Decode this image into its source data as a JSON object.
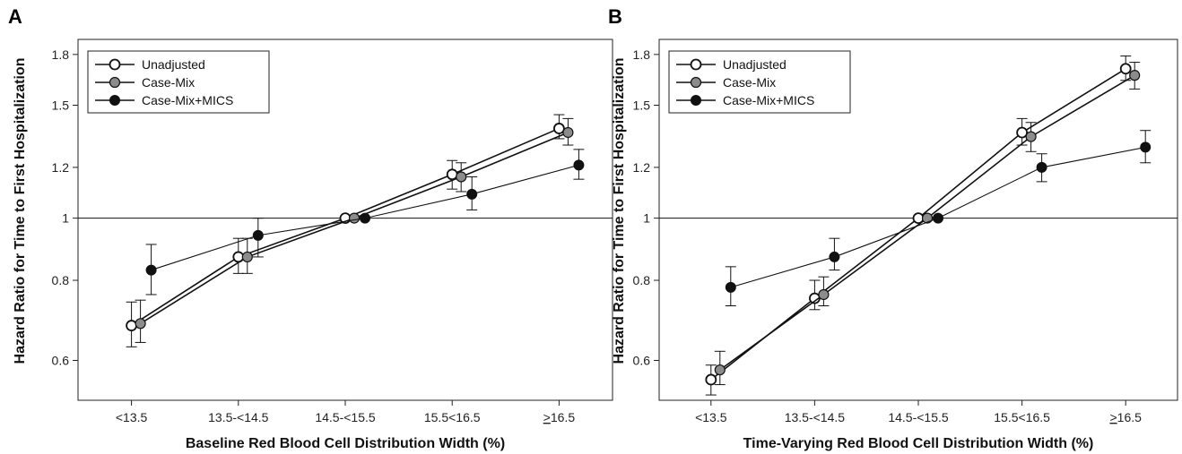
{
  "chart_data": [
    {
      "type": "line",
      "panel_label": "A",
      "xlabel": "Baseline Red Blood Cell Distribution Width (%)",
      "ylabel": "Hazard Ratio for Time to First Hospitalization",
      "categories": [
        "<13.5",
        "13.5-<14.5",
        "14.5-<15.5",
        "15.5<16.5",
        "≥16.5"
      ],
      "y_scale": "log",
      "ylim": [
        0.52,
        1.9
      ],
      "yticks": [
        0.6,
        0.8,
        1,
        1.2,
        1.5,
        1.8
      ],
      "reference_line": 1,
      "legend_position": "top-left",
      "series": [
        {
          "name": "Unadjusted",
          "color": "#ffffff",
          "values": [
            0.68,
            0.87,
            1.0,
            1.17,
            1.38
          ],
          "ci_low": [
            0.63,
            0.82,
            1.0,
            1.11,
            1.33
          ],
          "ci_high": [
            0.74,
            0.93,
            1.0,
            1.23,
            1.45
          ]
        },
        {
          "name": "Case-Mix",
          "color": "#8c8c8c",
          "values": [
            0.685,
            0.87,
            1.0,
            1.16,
            1.36
          ],
          "ci_low": [
            0.64,
            0.82,
            1.0,
            1.1,
            1.3
          ],
          "ci_high": [
            0.745,
            0.93,
            1.0,
            1.22,
            1.43
          ]
        },
        {
          "name": "Case-Mix+MICS",
          "color": "#111111",
          "values": [
            0.83,
            0.94,
            1.0,
            1.09,
            1.21
          ],
          "ci_low": [
            0.76,
            0.87,
            1.0,
            1.03,
            1.15
          ],
          "ci_high": [
            0.91,
            1.0,
            1.0,
            1.16,
            1.28
          ]
        }
      ]
    },
    {
      "type": "line",
      "panel_label": "B",
      "xlabel": "Time-Varying Red Blood Cell Distribution Width (%)",
      "ylabel": "Hazard Ratio for Time to First Hospitalization",
      "categories": [
        "<13.5",
        "13.5-<14.5",
        "14.5-<15.5",
        "15.5<16.5",
        "≥16.5"
      ],
      "y_scale": "log",
      "ylim": [
        0.52,
        1.9
      ],
      "yticks": [
        0.6,
        0.8,
        1,
        1.2,
        1.5,
        1.8
      ],
      "reference_line": 1,
      "legend_position": "top-left",
      "series": [
        {
          "name": "Unadjusted",
          "color": "#ffffff",
          "values": [
            0.56,
            0.75,
            1.0,
            1.36,
            1.71
          ],
          "ci_low": [
            0.53,
            0.72,
            1.0,
            1.3,
            1.64
          ],
          "ci_high": [
            0.59,
            0.8,
            1.0,
            1.43,
            1.79
          ]
        },
        {
          "name": "Case-Mix",
          "color": "#8c8c8c",
          "values": [
            0.58,
            0.76,
            1.0,
            1.34,
            1.67
          ],
          "ci_low": [
            0.55,
            0.73,
            1.0,
            1.27,
            1.59
          ],
          "ci_high": [
            0.62,
            0.81,
            1.0,
            1.41,
            1.75
          ]
        },
        {
          "name": "Case-Mix+MICS",
          "color": "#111111",
          "values": [
            0.78,
            0.87,
            1.0,
            1.2,
            1.29
          ],
          "ci_low": [
            0.73,
            0.83,
            1.0,
            1.14,
            1.22
          ],
          "ci_high": [
            0.84,
            0.93,
            1.0,
            1.26,
            1.37
          ]
        }
      ]
    }
  ]
}
